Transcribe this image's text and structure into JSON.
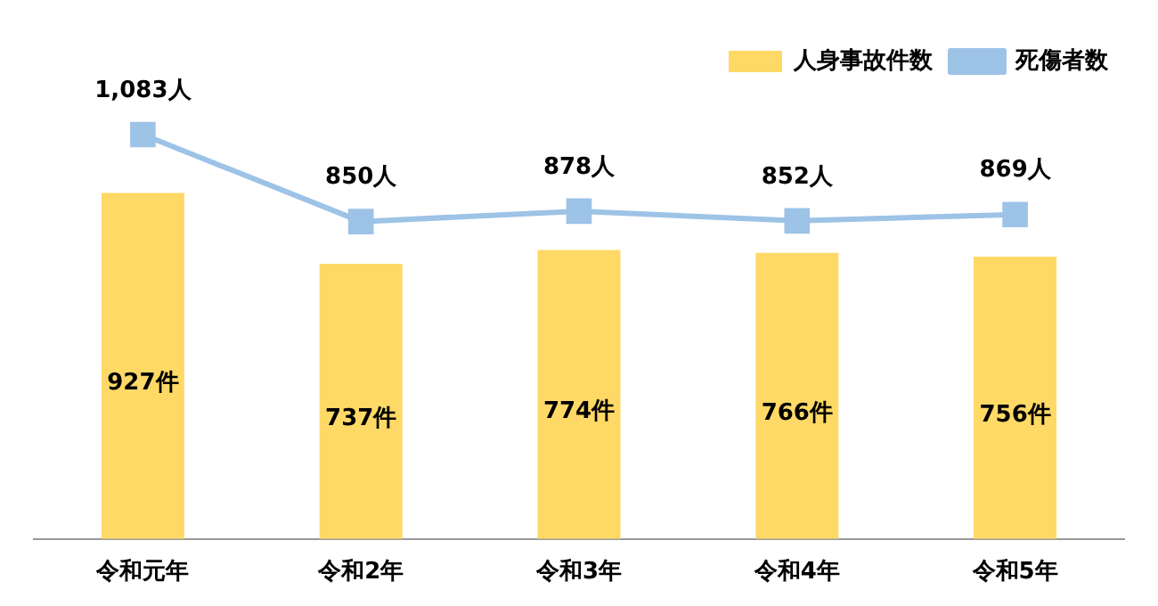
{
  "chart_data": {
    "type": "bar",
    "categories": [
      "令和元年",
      "令和2年",
      "令和3年",
      "令和4年",
      "令和5年"
    ],
    "series": [
      {
        "name": "人身事故件数",
        "color": "#ffd966",
        "values": [
          927,
          737,
          774,
          766,
          756
        ],
        "value_labels": [
          "927件",
          "737件",
          "774件",
          "766件",
          "756件"
        ]
      },
      {
        "name": "死傷者数",
        "type": "line",
        "color": "#9dc3e6",
        "values": [
          1083,
          850,
          878,
          852,
          869
        ],
        "value_labels": [
          "1,083人",
          "850人",
          "878人",
          "852人",
          "869人"
        ]
      }
    ],
    "tick_labels": "x",
    "legend": "top right",
    "marker": "square",
    "grid": false
  }
}
